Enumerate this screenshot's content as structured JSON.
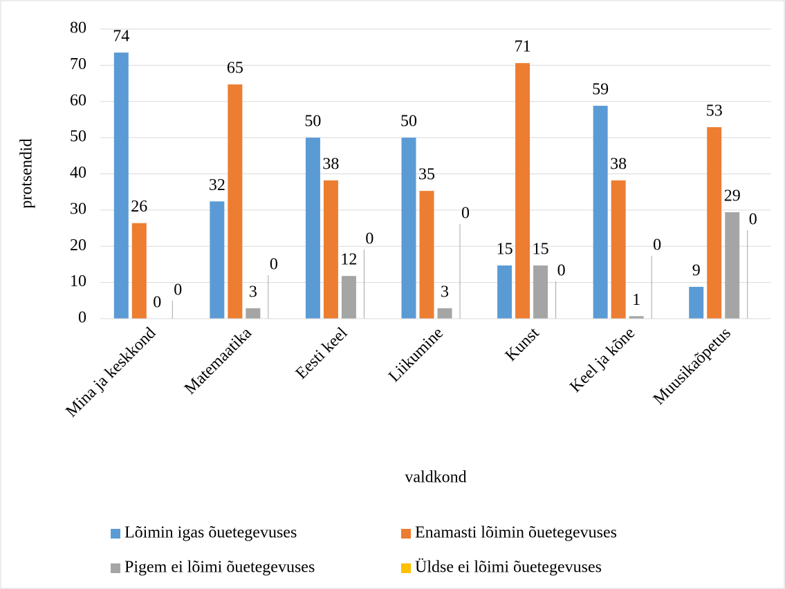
{
  "chart_data": {
    "type": "bar",
    "ylabel": "protsendid",
    "xlabel": "valdkond",
    "categories": [
      "Mina ja keskkond",
      "Matemaatika",
      "Eesti keel",
      "Liikumine",
      "Kunst",
      "Keel ja kõne",
      "Muusikaõpetus"
    ],
    "series": [
      {
        "name": "Lõimin igas õuetegevuses",
        "color": "#5b9bd5",
        "values": [
          73.5,
          32.4,
          50,
          50,
          14.7,
          58.8,
          8.8
        ],
        "value_labels": [
          "74",
          "32",
          "50",
          "50",
          "15",
          "59",
          "9"
        ]
      },
      {
        "name": "Enamasti lõimin õuetegevuses",
        "color": "#ed7d31",
        "values": [
          26.4,
          64.7,
          38.2,
          35.3,
          70.6,
          38.2,
          52.9
        ],
        "value_labels": [
          "26",
          "65",
          "38",
          "35",
          "71",
          "38",
          "53"
        ]
      },
      {
        "name": "Pigem ei lõimi õuetegevuses",
        "color": "#a5a5a5",
        "values": [
          0,
          2.9,
          11.8,
          2.9,
          14.7,
          0.7,
          29.4
        ],
        "value_labels": [
          "0",
          "3",
          "12",
          "3",
          "15",
          "1",
          "29"
        ]
      },
      {
        "name": "Üldse ei lõimi õuetegevuses",
        "color": "#ffc000",
        "values": [
          0,
          0,
          0,
          0,
          0,
          0,
          0
        ],
        "value_labels": [
          "0",
          "0",
          "0",
          "0",
          "0",
          "0",
          "0"
        ]
      }
    ],
    "ylim": [
      0,
      80
    ],
    "yticks": [
      0,
      10,
      20,
      30,
      40,
      50,
      60,
      70,
      80
    ],
    "grid": true,
    "legend": "bottom"
  }
}
